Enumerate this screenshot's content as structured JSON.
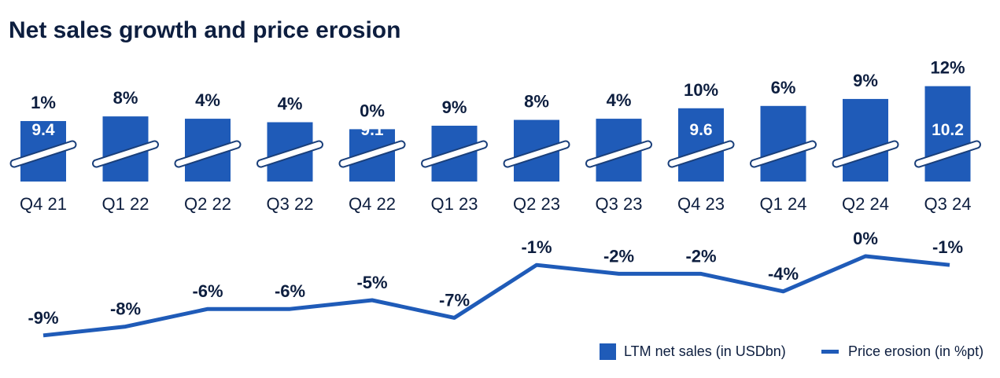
{
  "title": "Net sales growth and price erosion",
  "colors": {
    "bar": "#1f5bb8",
    "line": "#1f5bb8",
    "text": "#0d1e3f",
    "break": "#ffffff",
    "break_edge": "#1a3f7a"
  },
  "legend": {
    "bar_label": "LTM net sales (in USDbn)",
    "line_label": "Price erosion (in %pt)",
    "placement": "bottom-right"
  },
  "chart_data": [
    {
      "type": "bar",
      "categories": [
        "Q4 21",
        "Q1 22",
        "Q2 22",
        "Q3 22",
        "Q4 22",
        "Q1 23",
        "Q2 23",
        "Q3 23",
        "Q4 23",
        "Q1 24",
        "Q2 24",
        "Q3 24"
      ],
      "series": [
        {
          "name": "LTM net sales (in USDbn)",
          "values": [
            9.4,
            null,
            null,
            null,
            9.1,
            null,
            null,
            null,
            9.6,
            null,
            null,
            10.2
          ]
        }
      ],
      "growth_labels": [
        "1%",
        "8%",
        "4%",
        "4%",
        "0%",
        "9%",
        "8%",
        "4%",
        "10%",
        "6%",
        "9%",
        "12%"
      ],
      "value_labels": [
        "9.4",
        "",
        "",
        "",
        "9.1",
        "",
        "",
        "",
        "9.6",
        "",
        "",
        "10.2"
      ],
      "relative_height": [
        0.52,
        0.56,
        0.54,
        0.51,
        0.45,
        0.48,
        0.53,
        0.54,
        0.63,
        0.65,
        0.71,
        0.82
      ],
      "axis_break": true
    },
    {
      "type": "line",
      "categories": [
        "Q4 21",
        "Q1 22",
        "Q2 22",
        "Q3 22",
        "Q4 22",
        "Q1 23",
        "Q2 23",
        "Q3 23",
        "Q4 23",
        "Q1 24",
        "Q2 24",
        "Q3 24"
      ],
      "series": [
        {
          "name": "Price erosion (in %pt)",
          "values": [
            -9,
            -8,
            -6,
            -6,
            -5,
            -7,
            -1,
            -2,
            -2,
            -4,
            0,
            -1
          ]
        }
      ],
      "point_labels": [
        "-9%",
        "-8%",
        "-6%",
        "-6%",
        "-5%",
        "-7%",
        "-1%",
        "-2%",
        "-2%",
        "-4%",
        "0%",
        "-1%"
      ]
    }
  ]
}
